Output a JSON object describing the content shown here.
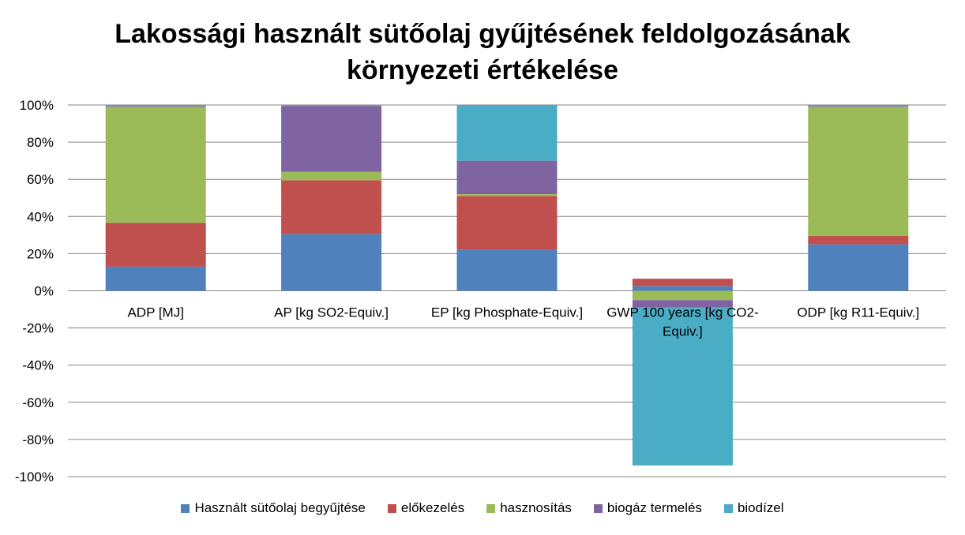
{
  "chart_data": {
    "type": "bar",
    "stacked": true,
    "title_lines": [
      "Lakossági használt sütőolaj gyűjtésének feldolgozásának",
      "környezeti értékelése"
    ],
    "categories": [
      "ADP [MJ]",
      "AP [kg SO2-Equiv.]",
      "EP [kg Phosphate-Equiv.]",
      "GWP 100 years [kg CO2-Equiv.]",
      "ODP [kg R11-Equiv.]"
    ],
    "category_label_lines": [
      [
        "ADP [MJ]"
      ],
      [
        "AP [kg SO2-Equiv.]"
      ],
      [
        "EP [kg Phosphate-Equiv.]"
      ],
      [
        "GWP 100 years [kg CO2-",
        "Equiv.]"
      ],
      [
        "ODP [kg R11-Equiv.]"
      ]
    ],
    "series": [
      {
        "name": "Használt sütőolaj begyűjtése",
        "color": "#4F81BD",
        "values": [
          13,
          30.5,
          22,
          2.5,
          25
        ]
      },
      {
        "name": "előkezelés",
        "color": "#C0504D",
        "values": [
          23.5,
          29,
          29,
          4,
          4.5
        ]
      },
      {
        "name": "hasznosítás",
        "color": "#9BBB59",
        "values": [
          62.5,
          4.5,
          1,
          -5,
          69.5
        ]
      },
      {
        "name": "biogáz termelés",
        "color": "#8064A2",
        "values": [
          0.5,
          35.5,
          18,
          -4,
          0.5
        ]
      },
      {
        "name": "biodízel",
        "color": "#4BACC6",
        "values": [
          0.5,
          0.5,
          30,
          -85,
          0.5
        ]
      }
    ],
    "ylim": [
      -100,
      100
    ],
    "yticks": [
      100,
      80,
      60,
      40,
      20,
      0,
      -20,
      -40,
      -60,
      -80,
      -100
    ],
    "ytick_labels": [
      "100%",
      "80%",
      "60%",
      "40%",
      "20%",
      "0%",
      "-20%",
      "-40%",
      "-60%",
      "-80%",
      "-100%"
    ],
    "grid": true,
    "legend_position": "bottom"
  }
}
